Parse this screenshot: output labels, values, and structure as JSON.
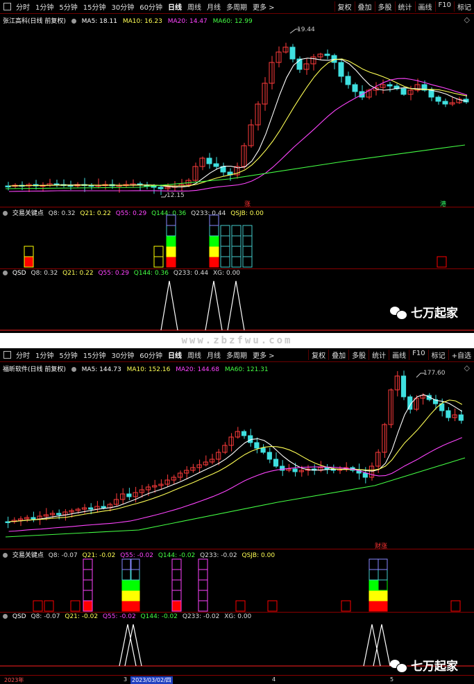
{
  "toolbar": {
    "tabs": [
      "分时",
      "1分钟",
      "5分钟",
      "15分钟",
      "30分钟",
      "60分钟",
      "日线",
      "周线",
      "月线",
      "多周期",
      "更多 >"
    ],
    "active": "日线",
    "right_buttons": [
      "复权",
      "叠加",
      "多股",
      "统计",
      "画线",
      "F10",
      "标记"
    ],
    "right_buttons_2": [
      "复权",
      "叠加",
      "多股",
      "统计",
      "画线",
      "F10",
      "标记",
      "+自选"
    ]
  },
  "panel1": {
    "title": "张江高科(日线 前复权)",
    "ma": [
      {
        "label": "MA5: 18.11",
        "color": "#ffffff"
      },
      {
        "label": "MA10: 16.23",
        "color": "#ffff55"
      },
      {
        "label": "MA20: 14.47",
        "color": "#ff44ff"
      },
      {
        "label": "MA60: 12.99",
        "color": "#44ff44"
      }
    ],
    "high_label": "19.44",
    "low_label": "12.15",
    "tag_up": "涨",
    "tag_gang": "港",
    "ind1": {
      "name": "交易关键点",
      "values": [
        {
          "label": "Q8: 0.32",
          "color": "#dddddd"
        },
        {
          "label": "Q21: 0.22",
          "color": "#ffff55"
        },
        {
          "label": "Q55: 0.29",
          "color": "#ff44ff"
        },
        {
          "label": "Q144: 0.36",
          "color": "#44ff44"
        },
        {
          "label": "Q233: 0.44",
          "color": "#dddddd"
        },
        {
          "label": "QSJB: 0.00",
          "color": "#ffff55"
        }
      ]
    },
    "ind2": {
      "name": "QSD",
      "values": [
        {
          "label": "Q8: 0.32",
          "color": "#dddddd"
        },
        {
          "label": "Q21: 0.22",
          "color": "#ffff55"
        },
        {
          "label": "Q55: 0.29",
          "color": "#ff44ff"
        },
        {
          "label": "Q144: 0.36",
          "color": "#44ff44"
        },
        {
          "label": "Q233: 0.44",
          "color": "#dddddd"
        },
        {
          "label": "XG: 0.00",
          "color": "#dddddd"
        }
      ]
    },
    "brand": "七万起家"
  },
  "watermark": "www.zbzfwu.com",
  "panel2": {
    "title": "福昕软件(日线 前复权)",
    "ma": [
      {
        "label": "MA5: 144.73",
        "color": "#ffffff"
      },
      {
        "label": "MA10: 152.16",
        "color": "#ffff55"
      },
      {
        "label": "MA20: 144.68",
        "color": "#ff44ff"
      },
      {
        "label": "MA60: 121.31",
        "color": "#44ff44"
      }
    ],
    "high_label": "177.60",
    "tag_cai": "财涨",
    "ind1": {
      "name": "交易关键点",
      "values": [
        {
          "label": "Q8: -0.07",
          "color": "#dddddd"
        },
        {
          "label": "Q21: -0.02",
          "color": "#ffff55"
        },
        {
          "label": "Q55: -0.02",
          "color": "#ff44ff"
        },
        {
          "label": "Q144: -0.02",
          "color": "#44ff44"
        },
        {
          "label": "Q233: -0.02",
          "color": "#dddddd"
        },
        {
          "label": "QSJB: 0.00",
          "color": "#ffff55"
        }
      ]
    },
    "ind2": {
      "name": "QSD",
      "values": [
        {
          "label": "Q8: -0.07",
          "color": "#dddddd"
        },
        {
          "label": "Q21: -0.02",
          "color": "#ffff55"
        },
        {
          "label": "Q55: -0.02",
          "color": "#ff44ff"
        },
        {
          "label": "Q144: -0.02",
          "color": "#44ff44"
        },
        {
          "label": "Q233: -0.02",
          "color": "#dddddd"
        },
        {
          "label": "XG: 0.00",
          "color": "#dddddd"
        }
      ]
    },
    "brand": "七万起家",
    "date_axis": {
      "year": "2023年",
      "m3": "3",
      "selected": "2023/03/02/四",
      "m4": "4",
      "m5": "5"
    }
  }
}
